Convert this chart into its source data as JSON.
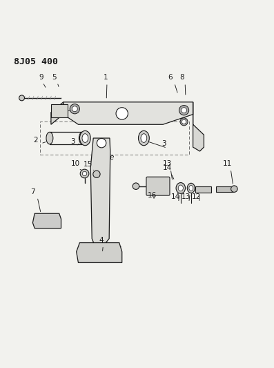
{
  "title": "8J05 400",
  "bg_color": "#f2f2ee",
  "line_color": "#1a1a1a",
  "fg_color": "#ddddda"
}
